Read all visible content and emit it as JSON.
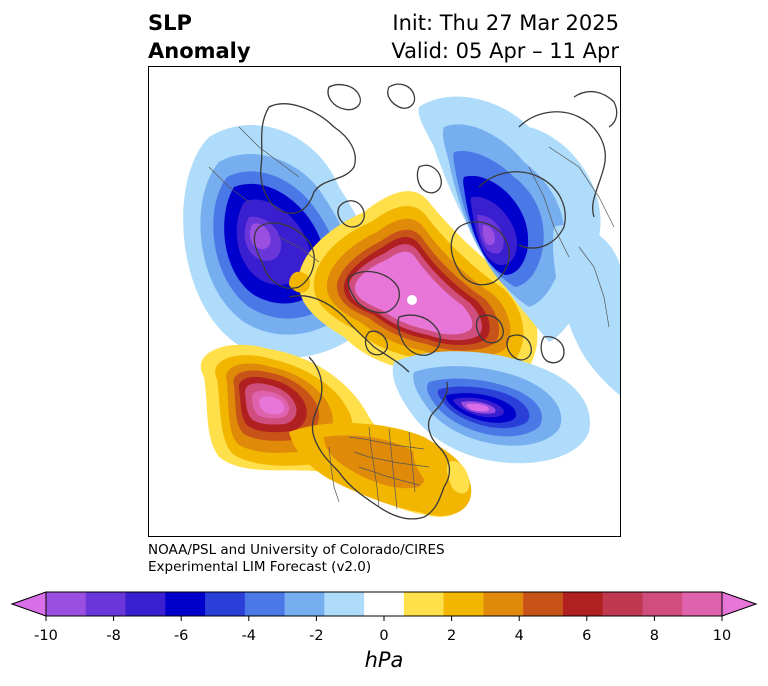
{
  "title": {
    "line1": "SLP",
    "line2": "Anomaly",
    "init": "Init: Thu 27 Mar 2025",
    "valid": "Valid: 05 Apr – 11 Apr"
  },
  "credit": {
    "line1": "NOAA/PSL and University of Colorado/CIRES",
    "line2": "Experimental LIM Forecast (v2.0)"
  },
  "colorbar": {
    "unit": "hPa",
    "ticks": [
      "-10",
      "-8",
      "-6",
      "-4",
      "-2",
      "0",
      "2",
      "4",
      "6",
      "8",
      "10"
    ],
    "colors": [
      "#d96ee8",
      "#9b4fe0",
      "#6a36da",
      "#3a1fd0",
      "#0000cc",
      "#2a3fd8",
      "#4a78e6",
      "#76aef0",
      "#aedcfa",
      "#ffffff",
      "#ffe04a",
      "#f2b600",
      "#e08a0a",
      "#c85318",
      "#b02020",
      "#c03850",
      "#d04e7e",
      "#de62ad",
      "#e876d8"
    ],
    "extend": "both"
  },
  "map": {
    "projection": "north-polar-stereographic",
    "field": "sea level pressure anomaly",
    "features": [
      {
        "name": "arctic-high",
        "sign": "positive",
        "peak_hpa": 10
      },
      {
        "name": "north-pacific-high",
        "sign": "positive",
        "peak_hpa": 10
      },
      {
        "name": "north-america-positive",
        "sign": "positive",
        "peak_hpa": 5
      },
      {
        "name": "north-atlantic-low",
        "sign": "negative",
        "peak_hpa": -9
      },
      {
        "name": "europe-low",
        "sign": "negative",
        "peak_hpa": -7
      },
      {
        "name": "siberia-low",
        "sign": "negative",
        "peak_hpa": -10
      }
    ]
  }
}
